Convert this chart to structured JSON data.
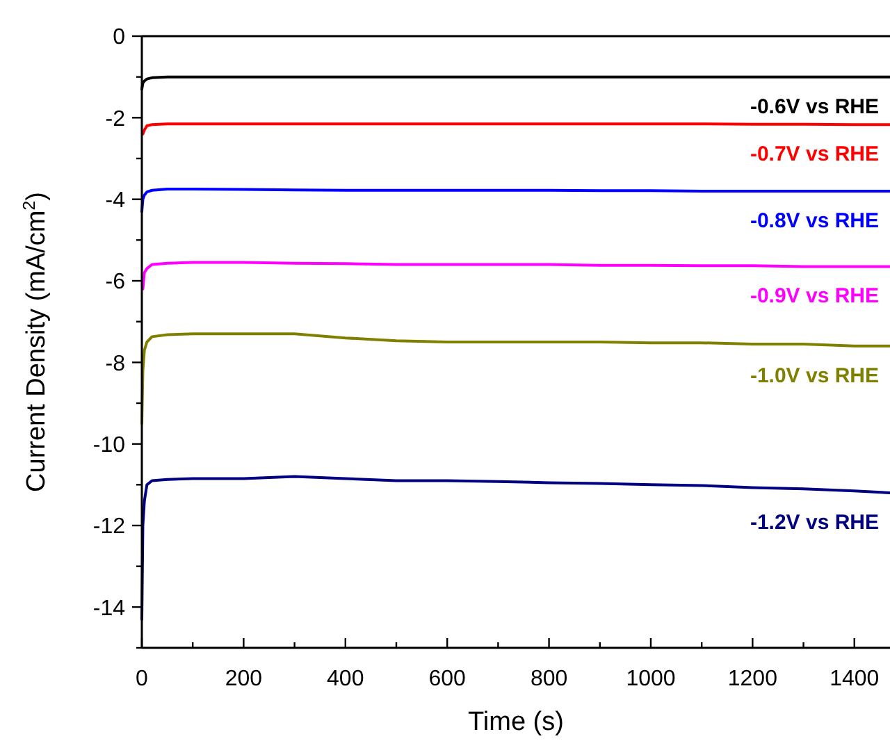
{
  "chart_data": {
    "type": "line",
    "xlabel": "Time (s)",
    "ylabel": "Current Density (mA/cm$^{2}$)",
    "xlim": [
      0,
      1470
    ],
    "ylim": [
      -15,
      0
    ],
    "xticks": [
      0,
      {
        "value": 100,
        "label": null
      },
      200,
      {
        "value": 300,
        "label": null
      },
      400,
      {
        "value": 500,
        "label": null
      },
      600,
      {
        "value": 700,
        "label": null
      },
      800,
      {
        "value": 900,
        "label": null
      },
      1000,
      {
        "value": 1100,
        "label": null
      },
      1200,
      {
        "value": 1300,
        "label": null
      },
      1400
    ],
    "yticks": [
      0,
      {
        "value": -1,
        "label": null
      },
      -2,
      {
        "value": -3,
        "label": null
      },
      -4,
      {
        "value": -5,
        "label": null
      },
      -6,
      {
        "value": -7,
        "label": null
      },
      -8,
      {
        "value": -9,
        "label": null
      },
      -10,
      {
        "value": -11,
        "label": null
      },
      -12,
      {
        "value": -13,
        "label": null
      },
      -14,
      {
        "value": -15,
        "label": null
      }
    ],
    "grid": false,
    "legend": false,
    "marker": "none",
    "line_style": "solid",
    "x": [
      0,
      2,
      5,
      10,
      20,
      50,
      100,
      200,
      300,
      400,
      500,
      600,
      700,
      800,
      900,
      1000,
      1100,
      1200,
      1300,
      1400,
      1470
    ],
    "series": [
      {
        "name": "-0.6V vs RHE",
        "color": "#000000",
        "values": [
          -1.3,
          -1.15,
          -1.1,
          -1.05,
          -1.02,
          -1.0,
          -1.0,
          -1.0,
          -1.0,
          -1.0,
          -1.0,
          -1.0,
          -1.0,
          -1.0,
          -1.0,
          -1.0,
          -1.0,
          -1.0,
          -1.0,
          -1.0,
          -1.0
        ]
      },
      {
        "name": "-0.7V vs RHE",
        "color": "#ff0000",
        "values": [
          null,
          -2.4,
          -2.3,
          -2.2,
          -2.17,
          -2.15,
          -2.15,
          -2.15,
          -2.15,
          -2.15,
          -2.15,
          -2.15,
          -2.15,
          -2.15,
          -2.15,
          -2.15,
          -2.15,
          -2.16,
          -2.16,
          -2.17,
          -2.17
        ]
      },
      {
        "name": "-0.8V vs RHE",
        "color": "#0000ff",
        "values": [
          -4.3,
          -4.0,
          -3.9,
          -3.82,
          -3.78,
          -3.75,
          -3.75,
          -3.76,
          -3.77,
          -3.78,
          -3.78,
          -3.78,
          -3.78,
          -3.78,
          -3.79,
          -3.79,
          -3.8,
          -3.8,
          -3.8,
          -3.8,
          -3.8
        ]
      },
      {
        "name": "-0.9V vs RHE",
        "color": "#ff00ff",
        "values": [
          null,
          -6.2,
          -5.8,
          -5.7,
          -5.6,
          -5.57,
          -5.55,
          -5.55,
          -5.57,
          -5.58,
          -5.6,
          -5.6,
          -5.6,
          -5.6,
          -5.62,
          -5.62,
          -5.63,
          -5.63,
          -5.65,
          -5.65,
          -5.65
        ]
      },
      {
        "name": "-1.0V vs RHE",
        "color": "#808000",
        "values": [
          -9.5,
          -8.2,
          -7.7,
          -7.5,
          -7.37,
          -7.32,
          -7.3,
          -7.3,
          -7.3,
          -7.4,
          -7.47,
          -7.5,
          -7.5,
          -7.5,
          -7.5,
          -7.52,
          -7.52,
          -7.55,
          -7.55,
          -7.6,
          -7.6
        ]
      },
      {
        "name": "-1.2V vs RHE",
        "color": "#000080",
        "values": [
          -14.3,
          -12.0,
          -11.4,
          -11.0,
          -10.9,
          -10.87,
          -10.85,
          -10.85,
          -10.8,
          -10.85,
          -10.9,
          -10.9,
          -10.92,
          -10.95,
          -10.97,
          -11.0,
          -11.02,
          -11.07,
          -11.1,
          -11.15,
          -11.2
        ]
      }
    ]
  }
}
